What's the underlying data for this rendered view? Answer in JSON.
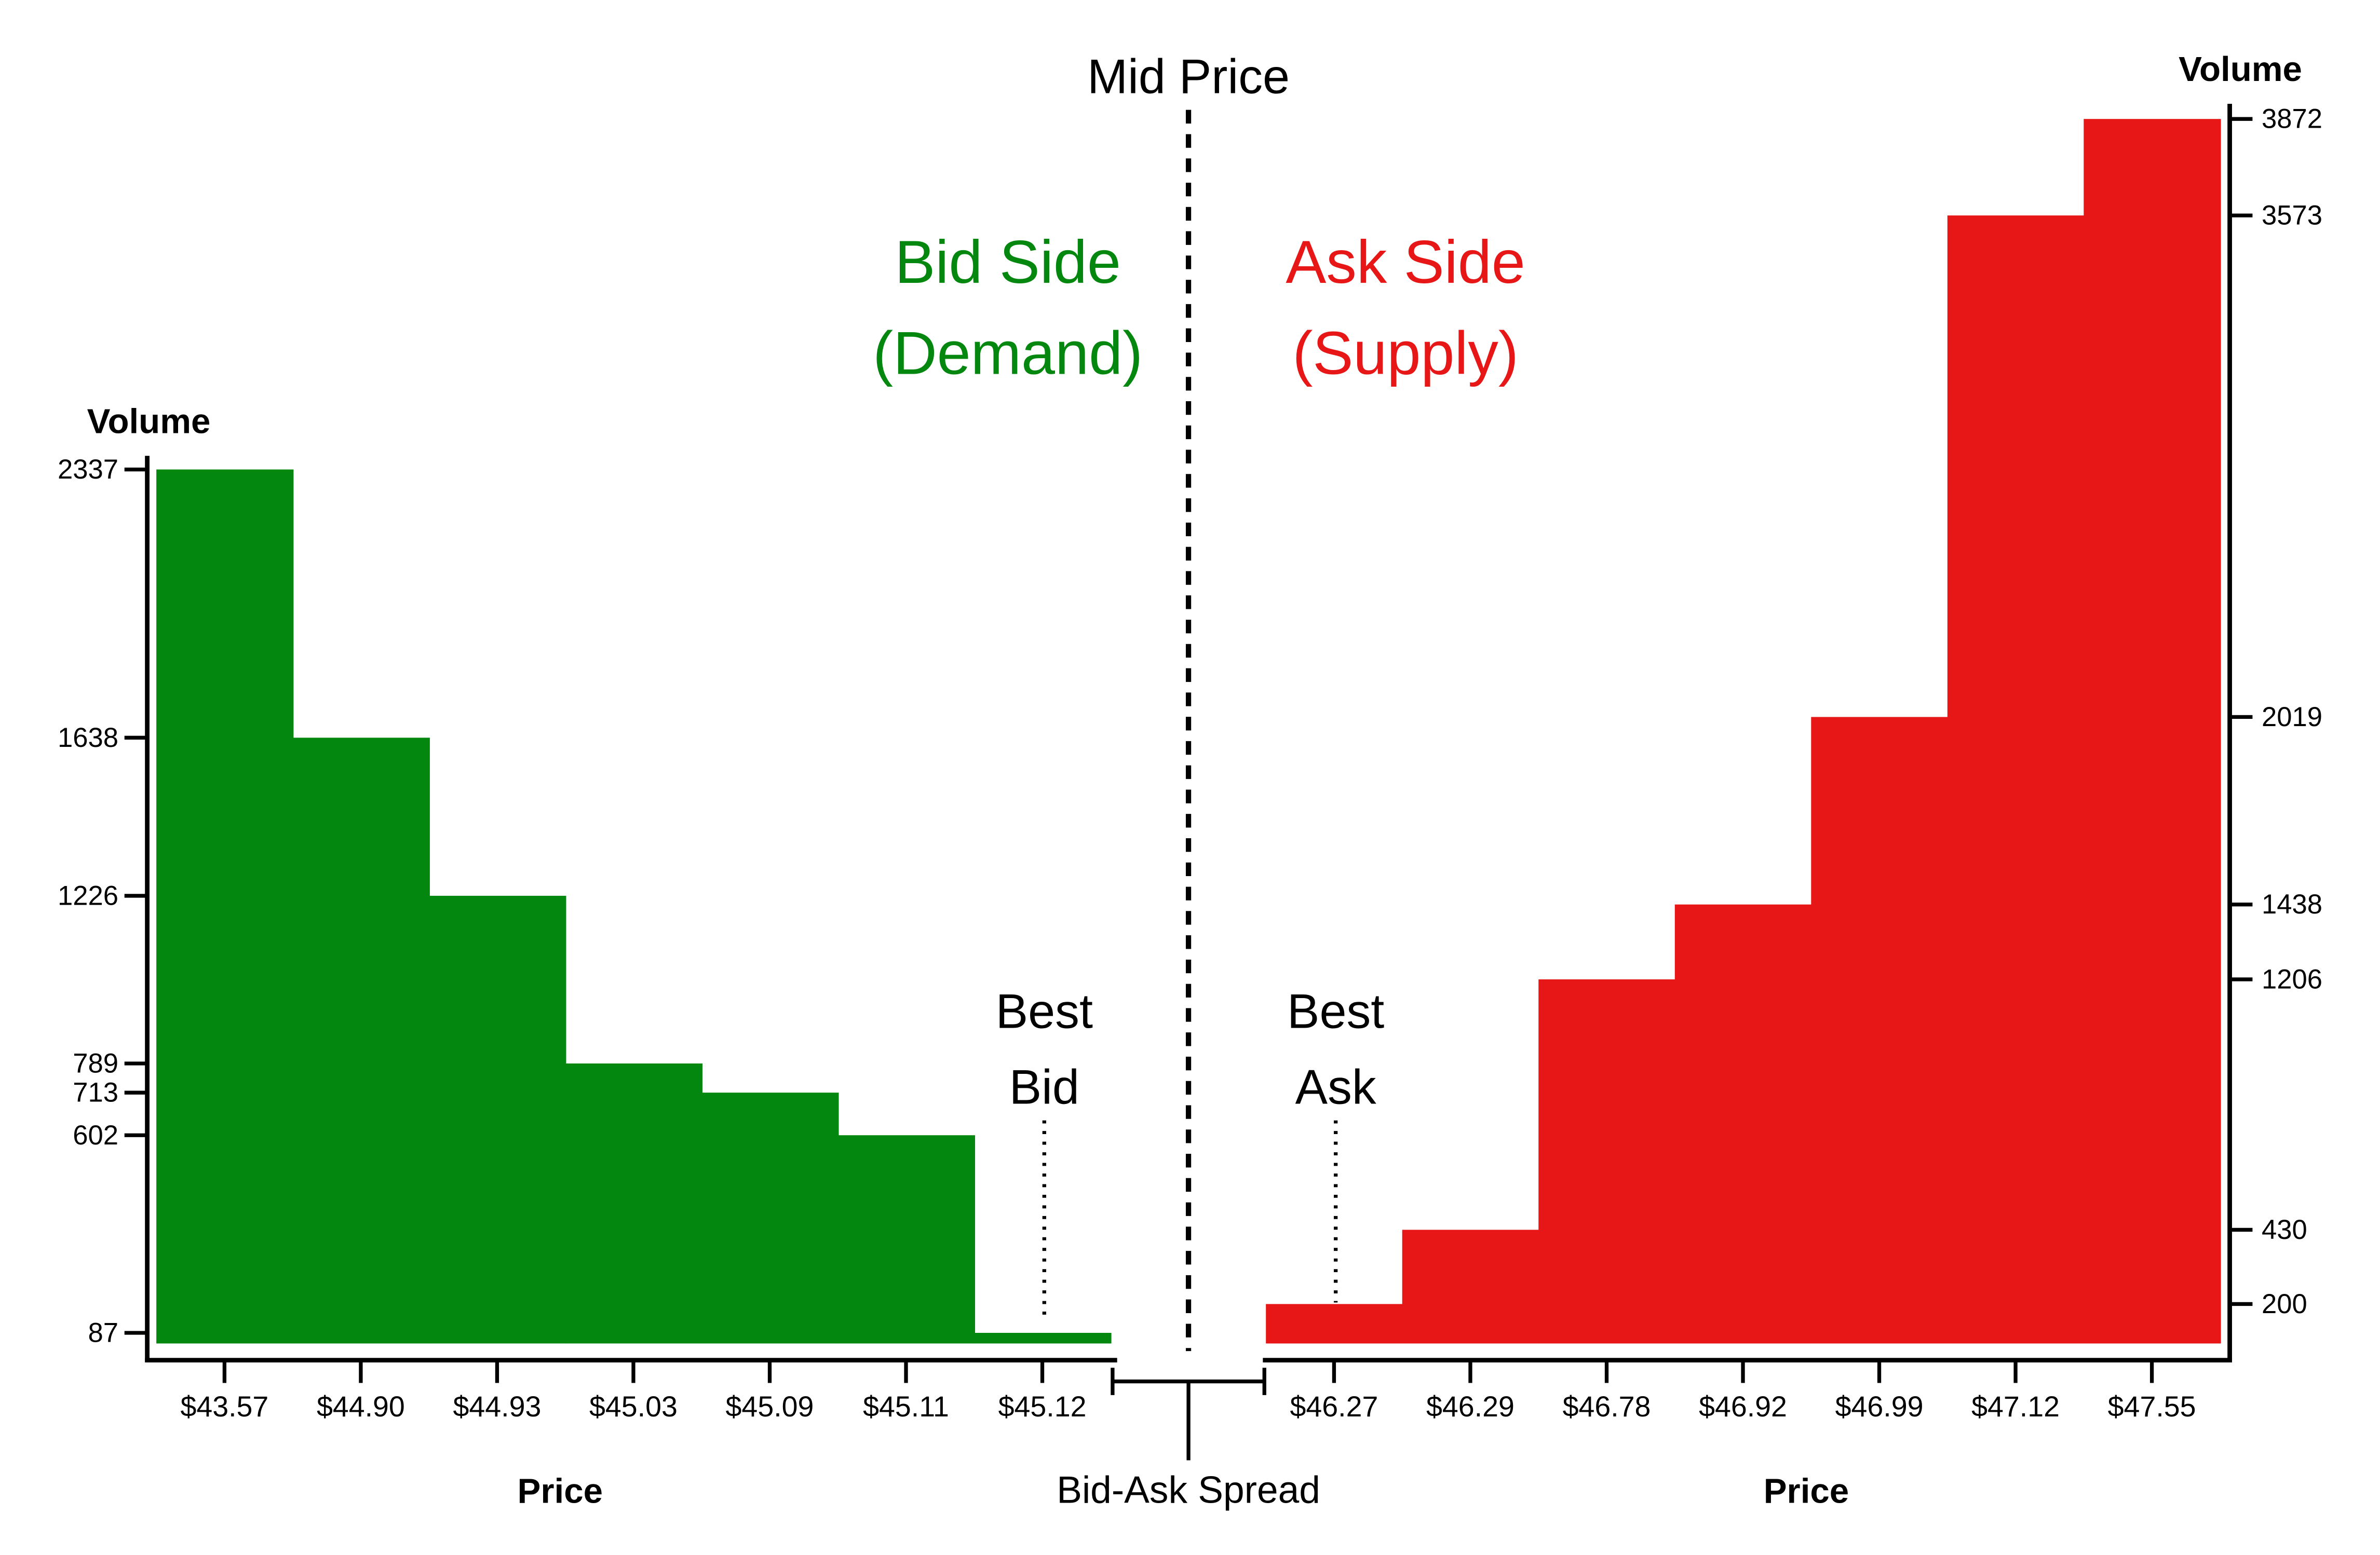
{
  "labels": {
    "mid_price": "Mid Price",
    "bid_side_line1": "Bid Side",
    "bid_side_line2": "(Demand)",
    "ask_side_line1": "Ask Side",
    "ask_side_line2": "(Supply)",
    "best_bid_line1": "Best",
    "best_bid_line2": "Bid",
    "best_ask_line1": "Best",
    "best_ask_line2": "Ask",
    "spread": "Bid-Ask Spread"
  },
  "colors": {
    "bid": "#04870F",
    "ask": "#E71617",
    "axis": "#000000"
  },
  "chart_data": [
    {
      "type": "bar",
      "name": "bid",
      "categories": [
        "$43.57",
        "$44.90",
        "$44.93",
        "$45.03",
        "$45.09",
        "$45.11",
        "$45.12"
      ],
      "values": [
        2337,
        1638,
        1226,
        789,
        713,
        602,
        87
      ],
      "yticks": [
        2337,
        1638,
        1226,
        789,
        713,
        602,
        87
      ],
      "xlabel": "Price",
      "ylabel": "Volume",
      "ylim": [
        -87,
        2337
      ],
      "color": "#04870F"
    },
    {
      "type": "bar",
      "name": "ask",
      "categories": [
        "$46.27",
        "$46.29",
        "$46.78",
        "$46.92",
        "$46.99",
        "$47.12",
        "$47.55"
      ],
      "values": [
        200,
        430,
        1206,
        1438,
        2019,
        3573,
        3872
      ],
      "yticks": [
        3872,
        3573,
        2019,
        1438,
        1206,
        430,
        200
      ],
      "xlabel": "Price",
      "ylabel": "Volume",
      "ylim": [
        -26,
        3872
      ],
      "color": "#E71617"
    }
  ]
}
